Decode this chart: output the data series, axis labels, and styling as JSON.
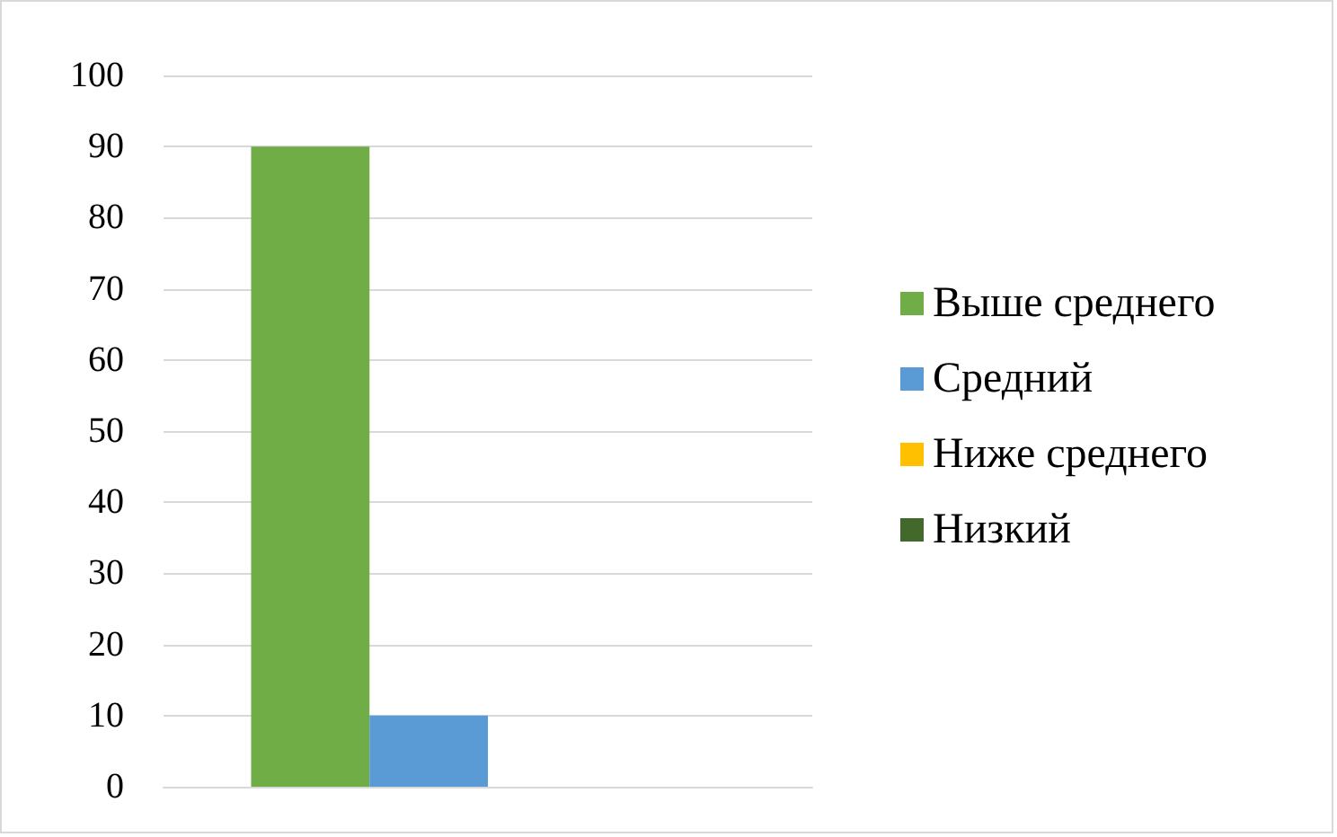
{
  "chart_data": {
    "type": "bar",
    "categories": [
      null
    ],
    "series": [
      {
        "name": "Выше среднего",
        "color": "#70ad47",
        "values": [
          90
        ]
      },
      {
        "name": "Средний",
        "color": "#5b9bd5",
        "values": [
          10
        ]
      },
      {
        "name": "Ниже среднего",
        "color": "#ffc000",
        "values": [
          0
        ]
      },
      {
        "name": "Низкий",
        "color": "#43682b",
        "values": [
          0
        ]
      }
    ],
    "ylim": [
      0,
      100
    ],
    "yticks": [
      0,
      10,
      20,
      30,
      40,
      50,
      60,
      70,
      80,
      90,
      100
    ],
    "grid": "y",
    "legend": "right"
  }
}
